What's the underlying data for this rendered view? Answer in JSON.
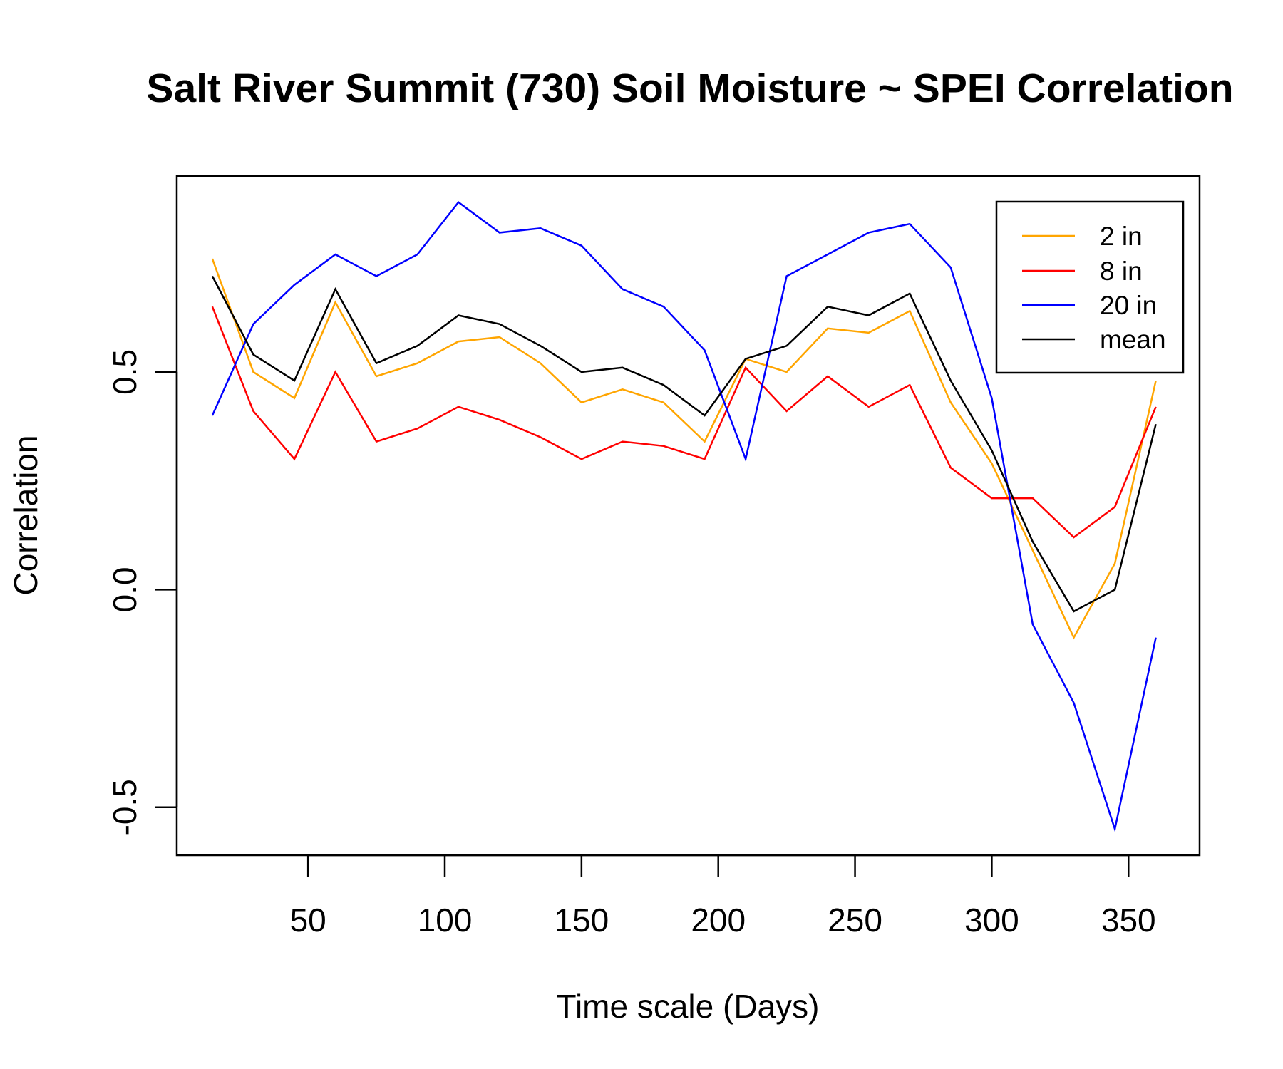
{
  "chart_data": {
    "type": "line",
    "title": "Salt River Summit (730) Soil Moisture ~ SPEI Correlation",
    "xlabel": "Time scale (Days)",
    "ylabel": "Correlation",
    "xlim": [
      2,
      376
    ],
    "ylim": [
      -0.61,
      0.95
    ],
    "x_ticks": [
      50,
      100,
      150,
      200,
      250,
      300,
      350
    ],
    "x_tick_labels": [
      "50",
      "100",
      "150",
      "200",
      "250",
      "300",
      "350"
    ],
    "y_ticks": [
      -0.5,
      0.0,
      0.5
    ],
    "y_tick_labels": [
      "-0.5",
      "0.0",
      "0.5"
    ],
    "legend_position": "top-right",
    "x": [
      15,
      30,
      45,
      60,
      75,
      90,
      105,
      120,
      135,
      150,
      165,
      180,
      195,
      210,
      225,
      240,
      255,
      270,
      285,
      300,
      315,
      330,
      345,
      360
    ],
    "series": [
      {
        "name": "2 in",
        "color": "#FFA500",
        "values": [
          0.76,
          0.5,
          0.44,
          0.66,
          0.49,
          0.52,
          0.57,
          0.58,
          0.52,
          0.43,
          0.46,
          0.43,
          0.34,
          0.53,
          0.5,
          0.6,
          0.59,
          0.64,
          0.43,
          0.29,
          0.09,
          -0.11,
          0.06,
          0.48
        ]
      },
      {
        "name": "8 in",
        "color": "#FF0000",
        "values": [
          0.65,
          0.41,
          0.3,
          0.5,
          0.34,
          0.37,
          0.42,
          0.39,
          0.35,
          0.3,
          0.34,
          0.33,
          0.3,
          0.51,
          0.41,
          0.49,
          0.42,
          0.47,
          0.28,
          0.21,
          0.21,
          0.12,
          0.19,
          0.42
        ]
      },
      {
        "name": "20 in",
        "color": "#0000FF",
        "values": [
          0.4,
          0.61,
          0.7,
          0.77,
          0.72,
          0.77,
          0.89,
          0.82,
          0.83,
          0.79,
          0.69,
          0.65,
          0.55,
          0.3,
          0.72,
          0.77,
          0.82,
          0.84,
          0.74,
          0.44,
          -0.08,
          -0.26,
          -0.55,
          -0.11
        ]
      },
      {
        "name": "mean",
        "color": "#000000",
        "values": [
          0.72,
          0.54,
          0.48,
          0.69,
          0.52,
          0.56,
          0.63,
          0.61,
          0.56,
          0.5,
          0.51,
          0.47,
          0.4,
          0.53,
          0.56,
          0.65,
          0.63,
          0.68,
          0.48,
          0.32,
          0.11,
          -0.05,
          0.0,
          0.38
        ]
      }
    ]
  }
}
